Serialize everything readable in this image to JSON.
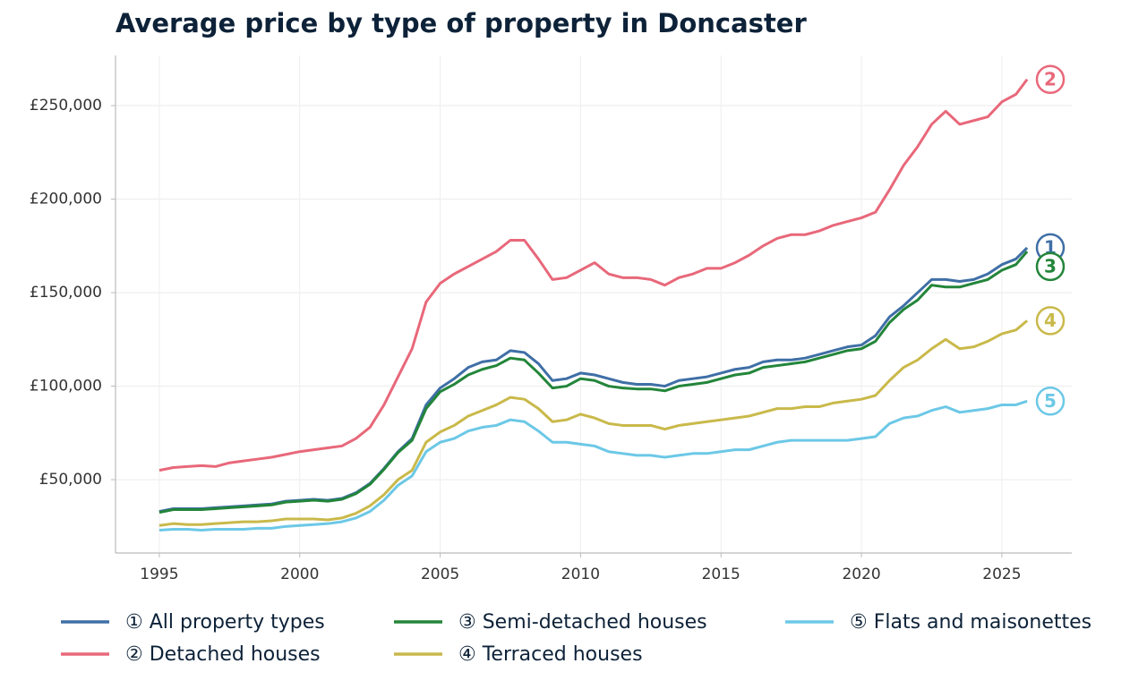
{
  "chart_data": {
    "type": "line",
    "title": "Average price by type of property in Doncaster",
    "x": [
      1995,
      1995.5,
      1996,
      1996.5,
      1997,
      1997.5,
      1998,
      1998.5,
      1999,
      1999.5,
      2000,
      2000.5,
      2001,
      2001.5,
      2002,
      2002.5,
      2003,
      2003.5,
      2004,
      2004.5,
      2005,
      2005.5,
      2006,
      2006.5,
      2007,
      2007.5,
      2008,
      2008.5,
      2009,
      2009.5,
      2010,
      2010.5,
      2011,
      2011.5,
      2012,
      2012.5,
      2013,
      2013.5,
      2014,
      2014.5,
      2015,
      2015.5,
      2016,
      2016.5,
      2017,
      2017.5,
      2018,
      2018.5,
      2019,
      2019.5,
      2020,
      2020.5,
      2021,
      2021.5,
      2022,
      2022.5,
      2023,
      2023.5,
      2024,
      2024.5,
      2025,
      2025.5,
      2025.9
    ],
    "xlim": [
      1993.44,
      2027.49
    ],
    "xticks": [
      1995,
      2000,
      2005,
      2010,
      2015,
      2020,
      2025
    ],
    "ylim": [
      10800,
      276800
    ],
    "yticks": [
      {
        "value": 50000,
        "label": "£50,000"
      },
      {
        "value": 100000,
        "label": "£100,000"
      },
      {
        "value": 150000,
        "label": "£150,000"
      },
      {
        "value": 200000,
        "label": "£200,000"
      },
      {
        "value": 250000,
        "label": "£250,000"
      }
    ],
    "grid": true,
    "legend": "bottom",
    "series": [
      {
        "name": "① All property types",
        "marker_label": "1",
        "color": "#3f6fa6",
        "values": [
          33000,
          34500,
          34500,
          34500,
          35000,
          35500,
          36000,
          36500,
          37000,
          38500,
          39000,
          39500,
          39000,
          40000,
          43000,
          48000,
          56000,
          65000,
          72000,
          90000,
          99000,
          104000,
          110000,
          113000,
          114000,
          119000,
          118000,
          112000,
          103000,
          104000,
          107000,
          106000,
          104000,
          102000,
          101000,
          101000,
          100000,
          103000,
          104000,
          105000,
          107000,
          109000,
          110000,
          113000,
          114000,
          114000,
          115000,
          117000,
          119000,
          121000,
          122000,
          127000,
          137000,
          143000,
          150000,
          157000,
          157000,
          156000,
          157000,
          160000,
          165000,
          168000,
          174000
        ]
      },
      {
        "name": "② Detached houses",
        "marker_label": "2",
        "color": "#e8687a",
        "values": [
          55000,
          56500,
          57000,
          57500,
          57000,
          59000,
          60000,
          61000,
          62000,
          63500,
          65000,
          66000,
          67000,
          68000,
          72000,
          78000,
          90000,
          105000,
          120000,
          145000,
          155000,
          160000,
          164000,
          168000,
          172000,
          178000,
          178000,
          168000,
          157000,
          158000,
          162000,
          166000,
          160000,
          158000,
          158000,
          157000,
          154000,
          158000,
          160000,
          163000,
          163000,
          166000,
          170000,
          175000,
          179000,
          181000,
          181000,
          183000,
          186000,
          188000,
          190000,
          193000,
          205000,
          218000,
          228000,
          240000,
          247000,
          240000,
          242000,
          244000,
          252000,
          256000,
          264000
        ]
      },
      {
        "name": "③ Semi-detached houses",
        "marker_label": "3",
        "color": "#23853a",
        "values": [
          32500,
          34000,
          34000,
          34000,
          34500,
          35000,
          35500,
          36000,
          36500,
          38000,
          38500,
          39000,
          38500,
          39500,
          42500,
          47500,
          55500,
          64500,
          71000,
          88000,
          97000,
          101000,
          106000,
          109000,
          111000,
          115000,
          114000,
          107000,
          99000,
          100000,
          104000,
          103000,
          100000,
          99000,
          98500,
          98500,
          97500,
          100000,
          101000,
          102000,
          104000,
          106000,
          107000,
          110000,
          111000,
          112000,
          113000,
          115000,
          117000,
          119000,
          120000,
          124000,
          134000,
          141000,
          146000,
          154000,
          153000,
          153000,
          155000,
          157000,
          162000,
          165000,
          172000
        ]
      },
      {
        "name": "④ Terraced houses",
        "marker_label": "4",
        "color": "#c9b94a",
        "values": [
          25500,
          26500,
          26000,
          26000,
          26500,
          27000,
          27500,
          27500,
          28000,
          29000,
          29000,
          29000,
          28500,
          29500,
          32000,
          36000,
          42000,
          50000,
          55000,
          70000,
          75500,
          79000,
          84000,
          87000,
          90000,
          94000,
          93000,
          88000,
          81000,
          82000,
          85000,
          83000,
          80000,
          79000,
          79000,
          79000,
          77000,
          79000,
          80000,
          81000,
          82000,
          83000,
          84000,
          86000,
          88000,
          88000,
          89000,
          89000,
          91000,
          92000,
          93000,
          95000,
          103000,
          110000,
          114000,
          120000,
          125000,
          120000,
          121000,
          124000,
          128000,
          130000,
          135000
        ]
      },
      {
        "name": "⑤ Flats and maisonettes",
        "marker_label": "5",
        "color": "#6cc8e6",
        "values": [
          23000,
          23500,
          23500,
          23000,
          23500,
          23500,
          23500,
          24000,
          24000,
          25000,
          25500,
          26000,
          26500,
          27500,
          29500,
          33000,
          39000,
          47000,
          52000,
          65000,
          70000,
          72000,
          76000,
          78000,
          79000,
          82000,
          81000,
          76000,
          70000,
          70000,
          69000,
          68000,
          65000,
          64000,
          63000,
          63000,
          62000,
          63000,
          64000,
          64000,
          65000,
          66000,
          66000,
          68000,
          70000,
          71000,
          71000,
          71000,
          71000,
          71000,
          72000,
          73000,
          80000,
          83000,
          84000,
          87000,
          89000,
          86000,
          87000,
          88000,
          90000,
          90000,
          92000
        ]
      }
    ]
  }
}
